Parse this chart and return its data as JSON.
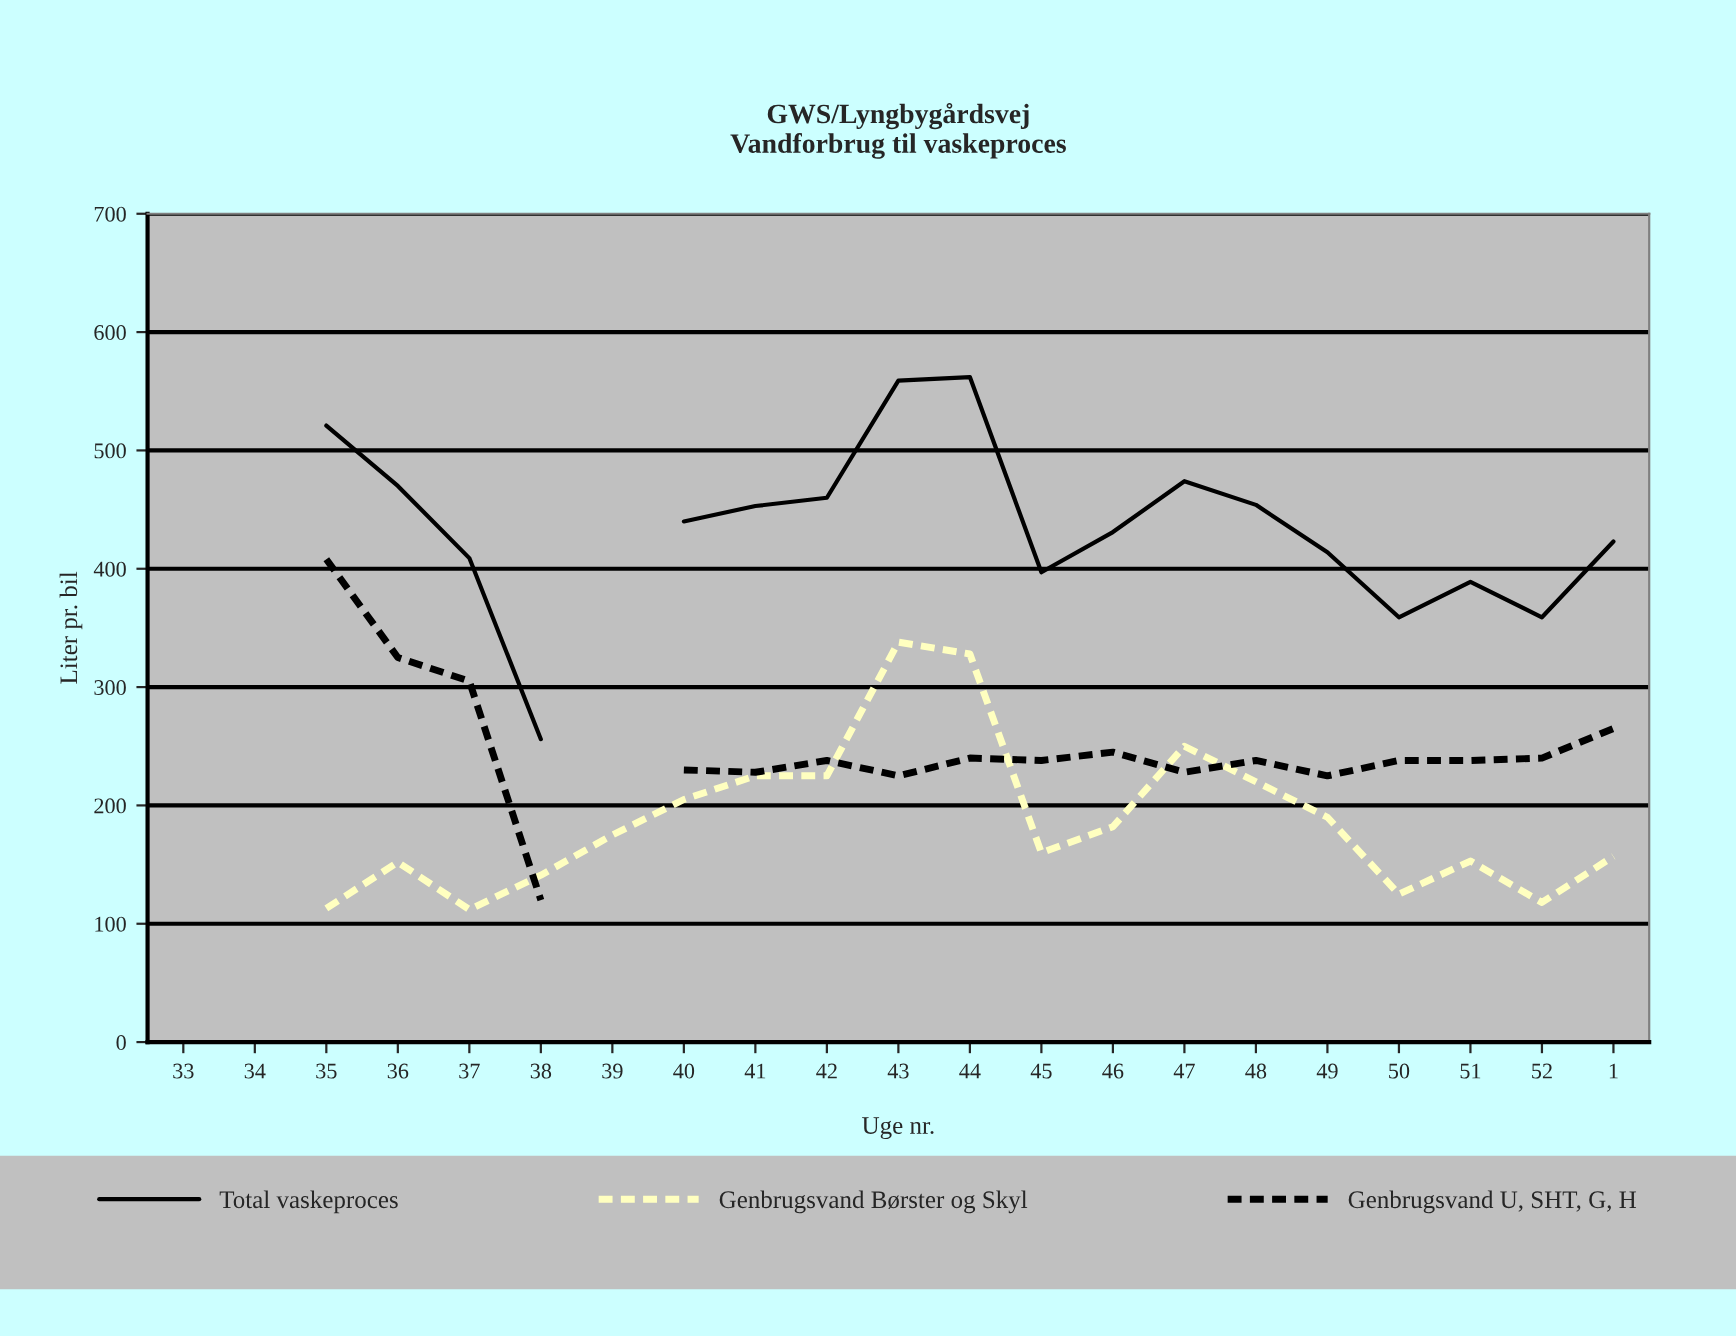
{
  "chart_data": {
    "type": "line",
    "title": "GWS/Lyngbygårdsvej\nVandforbrug til vaskeproces",
    "xlabel": "Uge nr.",
    "ylabel": "Liter pr. bil",
    "categories": [
      "33",
      "34",
      "35",
      "36",
      "37",
      "38",
      "39",
      "40",
      "41",
      "42",
      "43",
      "44",
      "45",
      "46",
      "47",
      "48",
      "49",
      "50",
      "51",
      "52",
      "1"
    ],
    "series": [
      {
        "name": "Total vaskeproces",
        "color": "#000000",
        "line_style": "solid",
        "values": [
          null,
          null,
          521,
          470,
          409,
          256,
          null,
          440,
          453,
          460,
          559,
          562,
          397,
          431,
          474,
          454,
          414,
          359,
          389,
          359,
          423
        ]
      },
      {
        "name": "Genbrugsvand Børster og Skyl",
        "color": "#ffffc0",
        "line_style": "dashed",
        "values": [
          null,
          null,
          113,
          152,
          112,
          141,
          175,
          205,
          225,
          225,
          338,
          328,
          160,
          182,
          250,
          220,
          190,
          125,
          153,
          118,
          157
        ]
      },
      {
        "name": "Genbrugsvand U, SHT, G, H",
        "color": "#000000",
        "line_style": "dashed",
        "values": [
          null,
          null,
          408,
          325,
          305,
          120,
          null,
          230,
          228,
          238,
          225,
          240,
          238,
          245,
          228,
          238,
          225,
          238,
          238,
          240,
          265
        ]
      }
    ],
    "ylim": [
      0,
      700
    ],
    "yticks": [
      0,
      100,
      200,
      300,
      400,
      500,
      600,
      700
    ],
    "grid": "y",
    "legend": "bottom",
    "marker": "none"
  }
}
